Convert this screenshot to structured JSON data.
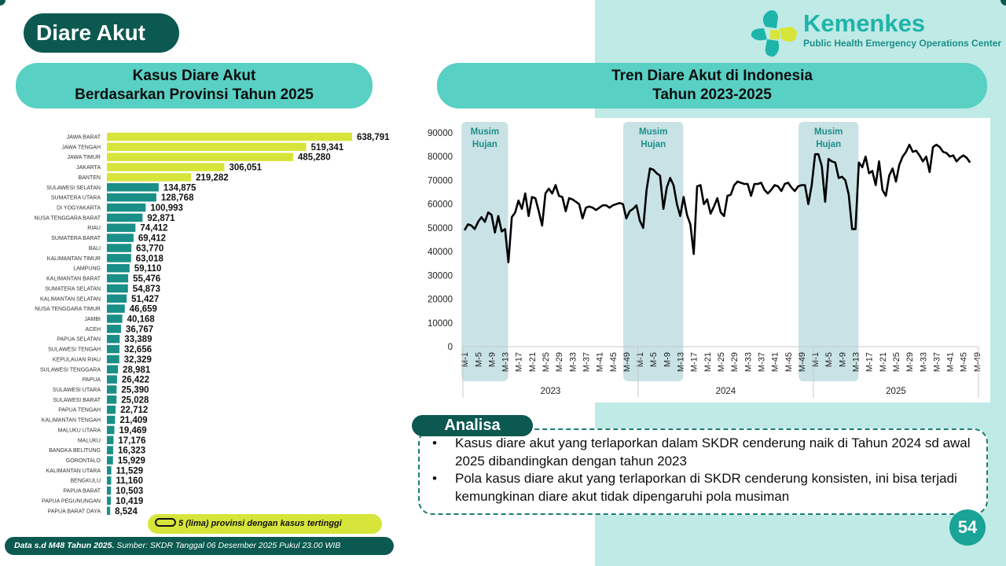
{
  "page_title": "Diare Akut",
  "logo": {
    "name": "Kemenkes",
    "subtitle": "Public Health Emergency Operations Center"
  },
  "left_section": {
    "title_line1": "Kasus Diare Akut",
    "title_line2": "Berdasarkan Provinsi Tahun 2025"
  },
  "right_section": {
    "title_line1": "Tren Diare Akut di Indonesia",
    "title_line2": "Tahun 2023-2025"
  },
  "legend": {
    "text": "5 (lima) provinsi dengan kasus tertinggi"
  },
  "footer": {
    "bold": "Data s.d M48 Tahun 2025.",
    "text": " Sumber: SKDR Tanggal 06 Desember 2025 Pukul 23.00 WIB"
  },
  "analisa": {
    "label": "Analisa",
    "points": [
      "Kasus diare akut yang terlaporkan dalam SKDR cenderung naik di Tahun 2024 sd awal 2025 dibandingkan dengan tahun 2023",
      "Pola kasus diare akut yang terlaporkan di SKDR cenderung konsisten, ini bisa terjadi kemungkinan diare akut tidak dipengaruhi pola musiman"
    ]
  },
  "page_number": "54",
  "colors": {
    "dark_teal": "#0b5950",
    "teal": "#1a8f88",
    "highlight": "#d7e53b",
    "light_teal": "#bfeae6",
    "band": "#c9e2e6"
  },
  "chart_data": [
    {
      "type": "bar",
      "orientation": "horizontal",
      "highlight_count": 5,
      "categories": [
        "JAWA BARAT",
        "JAWA TENGAH",
        "JAWA TIMUR",
        "JAKARTA",
        "BANTEN",
        "SULAWESI SELATAN",
        "SUMATERA UTARA",
        "DI YOGYAKARTA",
        "NUSA TENGGARA BARAT",
        "RIAU",
        "SUMATERA BARAT",
        "BALI",
        "KALIMANTAN TIMUR",
        "LAMPUNG",
        "KALIMANTAN BARAT",
        "SUMATERA SELATAN",
        "KALIMANTAN SELATAN",
        "NUSA TENGGARA TIMUR",
        "JAMBI",
        "ACEH",
        "PAPUA SELATAN",
        "SULAWESI TENGAH",
        "KEPULAUAN RIAU",
        "SULAWESI TENGGARA",
        "PAPUA",
        "SULAWESI UTARA",
        "SULAWESI BARAT",
        "PAPUA TENGAH",
        "KALIMANTAN TENGAH",
        "MALUKU UTARA",
        "MALUKU",
        "BANGKA BELITUNG",
        "GORONTALO",
        "KALIMANTAN UTARA",
        "BENGKULU",
        "PAPUA BARAT",
        "PAPUA PEGUNUNGAN",
        "PAPUA BARAT DAYA"
      ],
      "values": [
        638791,
        519341,
        485280,
        306051,
        219282,
        134875,
        128768,
        100993,
        92871,
        74412,
        69412,
        63770,
        63018,
        59110,
        55476,
        54873,
        51427,
        46659,
        40168,
        36767,
        33389,
        32656,
        32329,
        28981,
        26422,
        25390,
        25028,
        22712,
        21409,
        19469,
        17176,
        16323,
        15929,
        11529,
        11160,
        10503,
        10419,
        8524
      ],
      "labels": [
        "638,791",
        "519,341",
        "485,280",
        "306,051",
        "219,282",
        "134,875",
        "128,768",
        "100,993",
        "92,871",
        "74,412",
        "69,412",
        "63,770",
        "63,018",
        "59,110",
        "55,476",
        "54,873",
        "51,427",
        "46,659",
        "40,168",
        "36,767",
        "33,389",
        "32,656",
        "32,329",
        "28,981",
        "26,422",
        "25,390",
        "25,028",
        "22,712",
        "21,409",
        "19,469",
        "17,176",
        "16,323",
        "15,929",
        "11,529",
        "11,160",
        "10,503",
        "10,419",
        "8,524"
      ]
    },
    {
      "type": "line",
      "ylim": [
        0,
        90000
      ],
      "y_ticks": [
        "0",
        "10000",
        "20000",
        "30000",
        "40000",
        "50000",
        "60000",
        "70000",
        "80000",
        "90000"
      ],
      "week_tick_labels": [
        "M-1",
        "M-5",
        "M-9",
        "M-13",
        "M-17",
        "M-21",
        "M-25",
        "M-29",
        "M-33",
        "M-37",
        "M-41",
        "M-45",
        "M-49"
      ],
      "years": [
        "2023",
        "2024",
        "2025"
      ],
      "weeks_per_year": [
        52,
        52,
        49
      ],
      "bands": [
        {
          "label_line1": "Musim",
          "label_line2": "Hujan",
          "start": [
            2023,
            1
          ],
          "end": [
            2023,
            13
          ]
        },
        {
          "label_line1": "Musim",
          "label_line2": "Hujan",
          "start": [
            2023,
            49
          ],
          "end": [
            2024,
            13
          ]
        },
        {
          "label_line1": "Musim",
          "label_line2": "Hujan",
          "start": [
            2024,
            49
          ],
          "end": [
            2025,
            13
          ]
        }
      ],
      "series": [
        {
          "color": "#000000",
          "values": [
            49000,
            51500,
            51000,
            49500,
            52500,
            54500,
            52500,
            56500,
            55500,
            48000,
            55000,
            48500,
            49500,
            35500,
            54500,
            56500,
            61500,
            58000,
            64500,
            55000,
            63000,
            62500,
            57000,
            51000,
            64500,
            66500,
            64500,
            68000,
            63500,
            63000,
            57000,
            62500,
            62000,
            61000,
            60000,
            54000,
            58500,
            59000,
            58500,
            57500,
            58500,
            59500,
            59500,
            58500,
            59500,
            60000,
            60500,
            60000,
            54000,
            57000,
            58000,
            59500,
            53000,
            50000,
            66000,
            75000,
            74500,
            73000,
            72000,
            58000,
            67000,
            71000,
            68000,
            60000,
            55000,
            63000,
            55500,
            51500,
            39000,
            67500,
            68000,
            60000,
            62000,
            56000,
            59000,
            62500,
            56500,
            55000,
            63500,
            64000,
            68000,
            69500,
            69000,
            68500,
            68500,
            63500,
            68500,
            68500,
            69000,
            66000,
            64500,
            66000,
            68000,
            67500,
            65500,
            68500,
            69000,
            67000,
            65500,
            67500,
            68000,
            68000,
            60000,
            68000,
            81000,
            81000,
            76000,
            61000,
            79000,
            78000,
            77500,
            71000,
            71500,
            70000,
            64000,
            49500,
            49500,
            77500,
            75500,
            80000,
            73000,
            74000,
            68000,
            78000,
            66000,
            63500,
            72000,
            75000,
            69500,
            76500,
            80000,
            82000,
            85000,
            82000,
            82500,
            80500,
            78000,
            80000,
            73500,
            84000,
            85000,
            84000,
            82000,
            81500,
            80000,
            80500,
            78000,
            79500,
            80500,
            79500,
            77500
          ]
        }
      ]
    }
  ]
}
